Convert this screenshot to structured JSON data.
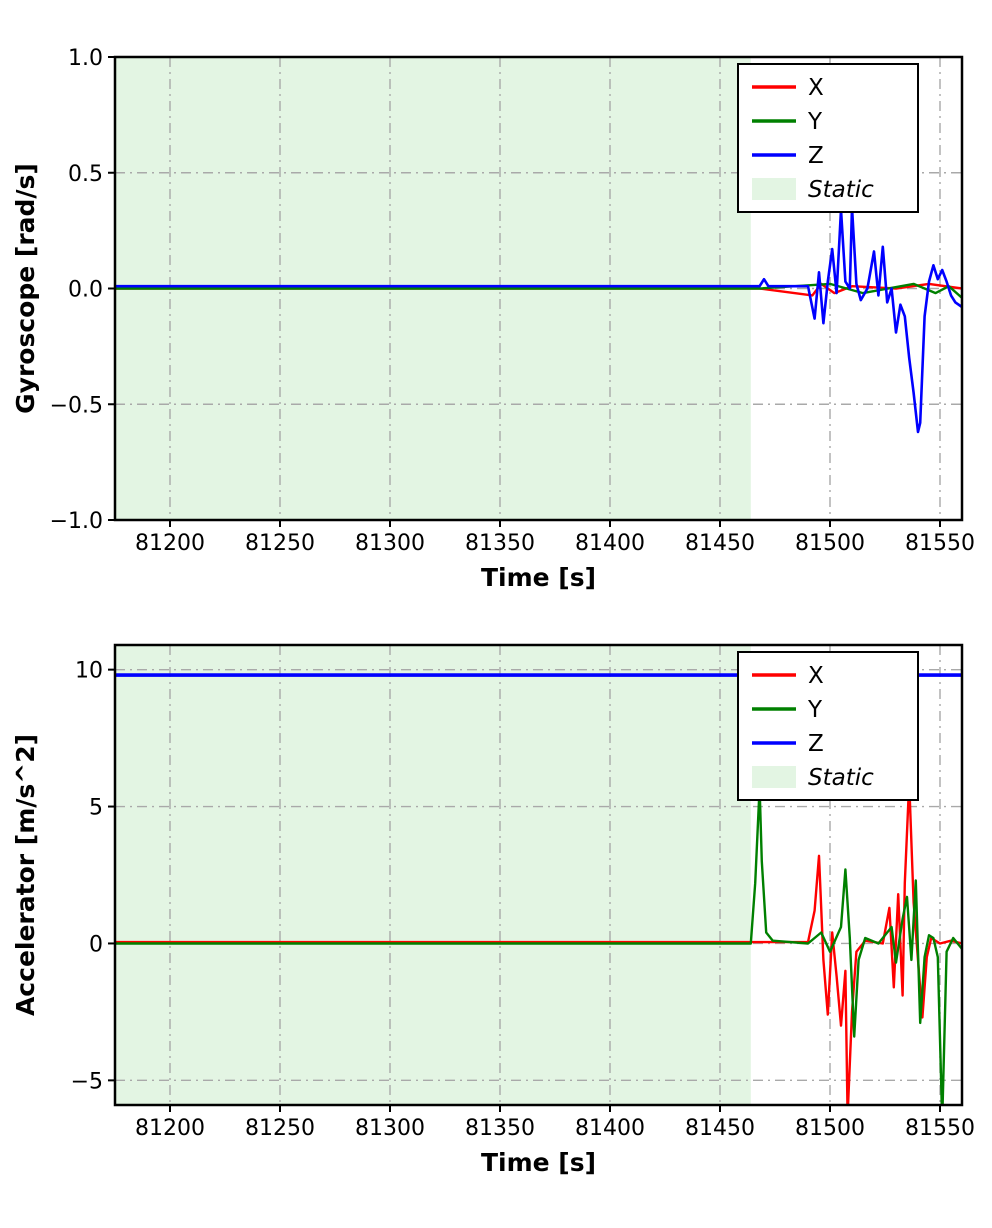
{
  "figure": {
    "background": "#ffffff"
  },
  "chart_data": [
    {
      "type": "line",
      "name": "gyroscope-chart",
      "title": "",
      "xlabel": "Time [s]",
      "ylabel": "Gyroscope [rad/s]",
      "xlim": [
        81175,
        81560
      ],
      "ylim": [
        -1.0,
        1.0
      ],
      "xticks": [
        81200,
        81250,
        81300,
        81350,
        81400,
        81450,
        81500,
        81550
      ],
      "xtick_labels": [
        "81200",
        "81250",
        "81300",
        "81350",
        "81400",
        "81450",
        "81500",
        "81550"
      ],
      "yticks": [
        -1.0,
        -0.5,
        0.0,
        0.5,
        1.0
      ],
      "ytick_labels": [
        "−1.0",
        "−0.5",
        "0.0",
        "0.5",
        "1.0"
      ],
      "grid": {
        "visible": true,
        "style": "dash-dot",
        "color": "#a9a9a9"
      },
      "static_region": {
        "label": "Static",
        "x_start": 81175,
        "x_end": 81464,
        "color": "#e3f5e3"
      },
      "legend": {
        "position": "top-right",
        "entries": [
          {
            "label": "X",
            "color": "#ff0000",
            "type": "line",
            "italic": false
          },
          {
            "label": "Y",
            "color": "#008000",
            "type": "line",
            "italic": false
          },
          {
            "label": "Z",
            "color": "#0000ff",
            "type": "line",
            "italic": false
          },
          {
            "label": "Static",
            "color": "#e3f5e3",
            "type": "patch",
            "italic": true
          }
        ]
      },
      "series": [
        {
          "name": "X",
          "color": "#ff0000",
          "width": 2.4,
          "points": [
            [
              81175,
              0
            ],
            [
              81468,
              0
            ],
            [
              81492,
              -0.03
            ],
            [
              81496,
              0.02
            ],
            [
              81502,
              -0.02
            ],
            [
              81510,
              0.01
            ],
            [
              81530,
              0
            ],
            [
              81545,
              0.02
            ],
            [
              81560,
              0
            ]
          ]
        },
        {
          "name": "Y",
          "color": "#008000",
          "width": 2.4,
          "points": [
            [
              81175,
              0
            ],
            [
              81468,
              0
            ],
            [
              81500,
              0.02
            ],
            [
              81515,
              -0.02
            ],
            [
              81538,
              0.02
            ],
            [
              81548,
              -0.02
            ],
            [
              81554,
              0.01
            ],
            [
              81560,
              -0.04
            ]
          ]
        },
        {
          "name": "Z",
          "color": "#0000ff",
          "width": 2.6,
          "points": [
            [
              81175,
              0.01
            ],
            [
              81468,
              0.01
            ],
            [
              81470,
              0.04
            ],
            [
              81472,
              0.01
            ],
            [
              81490,
              0.01
            ],
            [
              81493,
              -0.13
            ],
            [
              81495,
              0.07
            ],
            [
              81497,
              -0.15
            ],
            [
              81499,
              0.03
            ],
            [
              81501,
              0.17
            ],
            [
              81503,
              -0.02
            ],
            [
              81505,
              0.34
            ],
            [
              81507,
              0.03
            ],
            [
              81509,
              0.0
            ],
            [
              81510,
              0.35
            ],
            [
              81512,
              0.02
            ],
            [
              81514,
              -0.05
            ],
            [
              81517,
              0.0
            ],
            [
              81520,
              0.16
            ],
            [
              81522,
              -0.03
            ],
            [
              81524,
              0.18
            ],
            [
              81526,
              -0.06
            ],
            [
              81528,
              0.0
            ],
            [
              81530,
              -0.19
            ],
            [
              81532,
              -0.07
            ],
            [
              81534,
              -0.12
            ],
            [
              81536,
              -0.3
            ],
            [
              81538,
              -0.45
            ],
            [
              81540,
              -0.62
            ],
            [
              81541,
              -0.58
            ],
            [
              81543,
              -0.12
            ],
            [
              81545,
              0.03
            ],
            [
              81547,
              0.1
            ],
            [
              81549,
              0.04
            ],
            [
              81551,
              0.08
            ],
            [
              81553,
              0.03
            ],
            [
              81555,
              -0.03
            ],
            [
              81557,
              -0.06
            ],
            [
              81560,
              -0.08
            ]
          ]
        }
      ]
    },
    {
      "type": "line",
      "name": "accelerator-chart",
      "title": "",
      "xlabel": "Time [s]",
      "ylabel": "Accelerator [m/s^2]",
      "xlim": [
        81175,
        81560
      ],
      "ylim": [
        -5.9,
        10.9
      ],
      "xticks": [
        81200,
        81250,
        81300,
        81350,
        81400,
        81450,
        81500,
        81550
      ],
      "xtick_labels": [
        "81200",
        "81250",
        "81300",
        "81350",
        "81400",
        "81450",
        "81500",
        "81550"
      ],
      "yticks": [
        -5,
        0,
        5,
        10
      ],
      "ytick_labels": [
        "−5",
        "0",
        "5",
        "10"
      ],
      "grid": {
        "visible": true,
        "style": "dash-dot",
        "color": "#a9a9a9"
      },
      "static_region": {
        "label": "Static",
        "x_start": 81175,
        "x_end": 81464,
        "color": "#e3f5e3"
      },
      "legend": {
        "position": "top-right",
        "entries": [
          {
            "label": "X",
            "color": "#ff0000",
            "type": "line",
            "italic": false
          },
          {
            "label": "Y",
            "color": "#008000",
            "type": "line",
            "italic": false
          },
          {
            "label": "Z",
            "color": "#0000ff",
            "type": "line",
            "italic": false
          },
          {
            "label": "Static",
            "color": "#e3f5e3",
            "type": "patch",
            "italic": true
          }
        ]
      },
      "series": [
        {
          "name": "X",
          "color": "#ff0000",
          "width": 2.4,
          "points": [
            [
              81175,
              0.05
            ],
            [
              81466,
              0.05
            ],
            [
              81490,
              0.05
            ],
            [
              81493,
              1.2
            ],
            [
              81495,
              3.2
            ],
            [
              81497,
              -0.6
            ],
            [
              81499,
              -2.6
            ],
            [
              81501,
              0.4
            ],
            [
              81503,
              -1.2
            ],
            [
              81505,
              -3.0
            ],
            [
              81507,
              -1.0
            ],
            [
              81508,
              -6.3
            ],
            [
              81510,
              -2.5
            ],
            [
              81512,
              -0.3
            ],
            [
              81516,
              0.1
            ],
            [
              81524,
              0.0
            ],
            [
              81527,
              1.3
            ],
            [
              81529,
              -1.6
            ],
            [
              81531,
              1.8
            ],
            [
              81533,
              -1.9
            ],
            [
              81534,
              2.2
            ],
            [
              81536,
              5.9
            ],
            [
              81538,
              1.5
            ],
            [
              81540,
              -0.6
            ],
            [
              81542,
              -2.7
            ],
            [
              81544,
              -0.5
            ],
            [
              81546,
              0.2
            ],
            [
              81550,
              0.0
            ],
            [
              81555,
              0.1
            ],
            [
              81560,
              0.0
            ]
          ]
        },
        {
          "name": "Y",
          "color": "#008000",
          "width": 2.4,
          "points": [
            [
              81175,
              0
            ],
            [
              81464,
              0
            ],
            [
              81466,
              2.2
            ],
            [
              81468,
              5.7
            ],
            [
              81469,
              3.0
            ],
            [
              81471,
              0.4
            ],
            [
              81474,
              0.1
            ],
            [
              81490,
              0
            ],
            [
              81496,
              0.4
            ],
            [
              81500,
              -0.3
            ],
            [
              81505,
              0.6
            ],
            [
              81507,
              2.7
            ],
            [
              81509,
              0.2
            ],
            [
              81511,
              -3.4
            ],
            [
              81513,
              -0.6
            ],
            [
              81516,
              0.2
            ],
            [
              81522,
              0
            ],
            [
              81528,
              0.6
            ],
            [
              81530,
              -0.7
            ],
            [
              81533,
              0.9
            ],
            [
              81535,
              1.7
            ],
            [
              81537,
              -0.6
            ],
            [
              81539,
              2.3
            ],
            [
              81541,
              -2.9
            ],
            [
              81543,
              -0.5
            ],
            [
              81545,
              0.3
            ],
            [
              81547,
              0.2
            ],
            [
              81549,
              -0.5
            ],
            [
              81551,
              -6.5
            ],
            [
              81553,
              -0.3
            ],
            [
              81556,
              0.2
            ],
            [
              81560,
              -0.2
            ]
          ]
        },
        {
          "name": "Z",
          "color": "#0000ff",
          "width": 3.6,
          "points": [
            [
              81175,
              9.8
            ],
            [
              81560,
              9.8
            ]
          ]
        }
      ]
    }
  ]
}
